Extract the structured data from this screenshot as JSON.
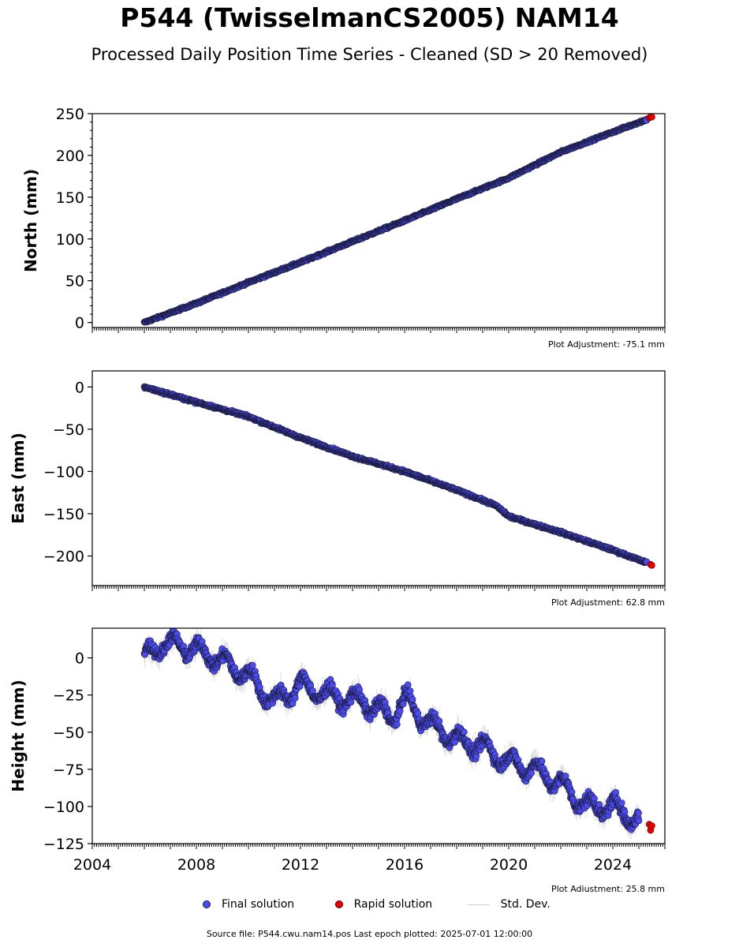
{
  "header": {
    "title": "P544 (TwisselmanCS2005) NAM14",
    "subtitle": "Processed Daily Position Time Series - Cleaned (SD > 20 Removed)"
  },
  "colors": {
    "final": "#4b4bee",
    "final_edge": "#1a1a3a",
    "rapid": "#e80000",
    "rapid_edge": "#5a0000",
    "std": "#bdbdbd"
  },
  "legend": {
    "final": "Final solution",
    "rapid": "Rapid solution",
    "std": "Std. Dev."
  },
  "footer": {
    "source": "Source file: P544.cwu.nam14.pos  Last epoch plotted: 2025-07-01 12:00:00"
  },
  "chart_data": [
    {
      "type": "scatter",
      "ylabel": "North (mm)",
      "adjustment": "Plot Adjustment: -75.1 mm",
      "xlim": [
        2004,
        2026
      ],
      "ylim": [
        -6,
        250
      ],
      "yticks": [
        0,
        50,
        100,
        150,
        200,
        250
      ],
      "ytick_labels": [
        "0",
        "50",
        "100",
        "150",
        "200",
        "250"
      ],
      "series": [
        {
          "kind": "final",
          "x": [
            2006.0,
            2008.0,
            2010.0,
            2012.0,
            2014.0,
            2016.0,
            2018.0,
            2020.0,
            2022.0,
            2024.0,
            2025.3
          ],
          "y": [
            0,
            23,
            48,
            72,
            97,
            122,
            148,
            173,
            204,
            228,
            243
          ]
        },
        {
          "kind": "rapid",
          "x": [
            2025.4,
            2025.45,
            2025.5
          ],
          "y": [
            245,
            246,
            246
          ]
        }
      ],
      "noise_mm": 1.2,
      "grid": false
    },
    {
      "type": "scatter",
      "ylabel": "East (mm)",
      "adjustment": "Plot Adjustment: 62.8 mm",
      "xlim": [
        2004,
        2026
      ],
      "ylim": [
        -235,
        19
      ],
      "yticks": [
        0,
        -50,
        -100,
        -150,
        -200
      ],
      "ytick_labels": [
        "0",
        "−50",
        "−100",
        "−150",
        "−200"
      ],
      "series": [
        {
          "kind": "final",
          "x": [
            2006.0,
            2008.0,
            2010.0,
            2012.0,
            2014.0,
            2016.0,
            2018.0,
            2019.5,
            2020.0,
            2022.0,
            2024.0,
            2025.3
          ],
          "y": [
            0,
            -18,
            -35,
            -60,
            -82,
            -100,
            -122,
            -140,
            -153,
            -172,
            -193,
            -208
          ]
        },
        {
          "kind": "rapid",
          "x": [
            2025.45,
            2025.5
          ],
          "y": [
            -210,
            -211
          ]
        }
      ],
      "noise_mm": 1.4,
      "grid": false
    },
    {
      "type": "scatter",
      "ylabel": "Height (mm)",
      "adjustment": "Plot Adjustment: 25.8 mm",
      "xlim": [
        2004,
        2026
      ],
      "ylim": [
        -125,
        20
      ],
      "yticks": [
        0,
        -25,
        -50,
        -75,
        -100,
        -125
      ],
      "ytick_labels": [
        "0",
        "−25",
        "−50",
        "−75",
        "−100",
        "−125"
      ],
      "xticks": [
        2004,
        2008,
        2012,
        2016,
        2020,
        2024
      ],
      "xtick_labels": [
        "2004",
        "2008",
        "2012",
        "2016",
        "2020",
        "2024"
      ],
      "series": [
        {
          "kind": "final",
          "x": [
            2006.0,
            2006.7,
            2007.5,
            2008.5,
            2010.0,
            2011.0,
            2012.0,
            2013.0,
            2014.5,
            2015.5,
            2016.0,
            2017.0,
            2018.0,
            2019.0,
            2020.0,
            2021.0,
            2022.0,
            2023.0,
            2024.0,
            2025.0
          ],
          "y": [
            0,
            10,
            8,
            2,
            -12,
            -30,
            -18,
            -25,
            -30,
            -40,
            -28,
            -45,
            -55,
            -60,
            -70,
            -75,
            -85,
            -100,
            -100,
            -110
          ]
        },
        {
          "kind": "rapid",
          "x": [
            2025.4,
            2025.45,
            2025.5
          ],
          "y": [
            -112,
            -116,
            -113
          ]
        }
      ],
      "seasonal_amplitude_mm": 6,
      "noise_mm": 4,
      "grid": false
    }
  ]
}
